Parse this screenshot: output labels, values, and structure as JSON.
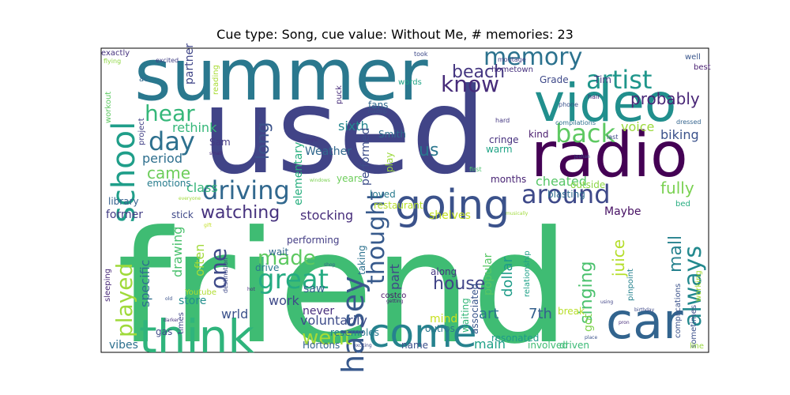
{
  "chart_data": {
    "type": "wordcloud",
    "title": "Cue type: Song, cue value: Without Me, # memories: 23",
    "words": [
      {
        "text": "friend",
        "color": "#3fbc73"
      },
      {
        "text": "used",
        "color": "#414487"
      },
      {
        "text": "summer",
        "color": "#2a788e"
      },
      {
        "text": "radio",
        "color": "#440154"
      },
      {
        "text": "video",
        "color": "#218f8d"
      },
      {
        "text": "car",
        "color": "#32648e"
      },
      {
        "text": "think",
        "color": "#2fb47c"
      },
      {
        "text": "come",
        "color": "#26828e"
      },
      {
        "text": "going",
        "color": "#3b528b"
      },
      {
        "text": "school",
        "color": "#1f9e89"
      },
      {
        "text": "driving",
        "color": "#31688e"
      },
      {
        "text": "halsey",
        "color": "#38598c"
      },
      {
        "text": "around",
        "color": "#3e4989"
      },
      {
        "text": "artist",
        "color": "#1f968b"
      },
      {
        "text": "back",
        "color": "#5ec962"
      },
      {
        "text": "great",
        "color": "#25ab82"
      },
      {
        "text": "day",
        "color": "#2d708e"
      },
      {
        "text": "memory",
        "color": "#2c728e"
      },
      {
        "text": "thought",
        "color": "#375a8c"
      },
      {
        "text": "know",
        "color": "#472c7a"
      },
      {
        "text": "hear",
        "color": "#35b779"
      },
      {
        "text": "always",
        "color": "#23898e"
      },
      {
        "text": "made",
        "color": "#5ec962"
      },
      {
        "text": "went",
        "color": "#a5db36"
      },
      {
        "text": "one",
        "color": "#3e4a89"
      },
      {
        "text": "played",
        "color": "#9fda3a"
      },
      {
        "text": "beach",
        "color": "#453781"
      },
      {
        "text": "singing",
        "color": "#4ac16d"
      },
      {
        "text": "watching",
        "color": "#46327e"
      },
      {
        "text": "long",
        "color": "#3b528b"
      },
      {
        "text": "mall",
        "color": "#26828e"
      },
      {
        "text": "house",
        "color": "#414487"
      },
      {
        "text": "us",
        "color": "#2a768e"
      },
      {
        "text": "came",
        "color": "#6ccd5a"
      },
      {
        "text": "fully",
        "color": "#7ad151"
      },
      {
        "text": "probably",
        "color": "#482576"
      },
      {
        "text": "juice",
        "color": "#b5de2b"
      },
      {
        "text": "voice",
        "color": "#9bd93c"
      },
      {
        "text": "biking",
        "color": "#3b528b"
      },
      {
        "text": "stocking",
        "color": "#472d7b"
      },
      {
        "text": "rethink",
        "color": "#35b779"
      },
      {
        "text": "period",
        "color": "#2e6f8e"
      },
      {
        "text": "class",
        "color": "#35b779"
      },
      {
        "text": "partner",
        "color": "#404688"
      },
      {
        "text": "cheated",
        "color": "#56c667"
      },
      {
        "text": "Maybe",
        "color": "#471164"
      },
      {
        "text": "shelves",
        "color": "#c2df23"
      },
      {
        "text": "sixth",
        "color": "#24868e"
      },
      {
        "text": "Weather",
        "color": "#31688e"
      },
      {
        "text": "elementary",
        "color": "#29af7f"
      },
      {
        "text": "performed",
        "color": "#3d4e8a"
      },
      {
        "text": "specific",
        "color": "#2d708e"
      },
      {
        "text": "drawing",
        "color": "#4ac16d"
      },
      {
        "text": "often",
        "color": "#a0da39"
      },
      {
        "text": "store",
        "color": "#218f8d"
      },
      {
        "text": "work",
        "color": "#3e4989"
      },
      {
        "text": "saw",
        "color": "#33638d"
      },
      {
        "text": "part",
        "color": "#3f4788"
      },
      {
        "text": "voluntarily",
        "color": "#3e4c8a"
      },
      {
        "text": "never",
        "color": "#472f7d"
      },
      {
        "text": "popular",
        "color": "#58c765"
      },
      {
        "text": "dollar",
        "color": "#1e9c89"
      },
      {
        "text": "art",
        "color": "#2b748e"
      },
      {
        "text": "7th",
        "color": "#34608d"
      },
      {
        "text": "main",
        "color": "#1fa188"
      },
      {
        "text": "mind",
        "color": "#c8e020"
      },
      {
        "text": "got",
        "color": "#7fd34e"
      },
      {
        "text": "wrld",
        "color": "#3b528b"
      },
      {
        "text": "vibes",
        "color": "#2d708e"
      },
      {
        "text": "former",
        "color": "#433e85"
      },
      {
        "text": "Grade",
        "color": "#3e4989"
      },
      {
        "text": "Tim",
        "color": "#453882"
      },
      {
        "text": "fans",
        "color": "#31688e"
      },
      {
        "text": "Sam",
        "color": "#443983"
      },
      {
        "text": "Smith",
        "color": "#2e6e8e"
      },
      {
        "text": "play",
        "color": "#9bd93c"
      },
      {
        "text": "cringe",
        "color": "#46307e"
      },
      {
        "text": "warm",
        "color": "#20a486"
      },
      {
        "text": "kind",
        "color": "#481b6d"
      },
      {
        "text": "years",
        "color": "#6ccd5a"
      },
      {
        "text": "months",
        "color": "#482374"
      },
      {
        "text": "loved",
        "color": "#297b8e"
      },
      {
        "text": "restaurant",
        "color": "#b5de2b"
      },
      {
        "text": "emotions",
        "color": "#287d8e"
      },
      {
        "text": "outside",
        "color": "#8bd646"
      },
      {
        "text": "blasting",
        "color": "#2f6c8e"
      },
      {
        "text": "library",
        "color": "#34618d"
      },
      {
        "text": "stick",
        "color": "#3f4889"
      },
      {
        "text": "performing",
        "color": "#433d84"
      },
      {
        "text": "wait",
        "color": "#31688e"
      },
      {
        "text": "drive",
        "color": "#2a788e"
      },
      {
        "text": "along",
        "color": "#453581"
      },
      {
        "text": "taking",
        "color": "#2c718e"
      },
      {
        "text": "outros",
        "color": "#2a768e"
      },
      {
        "text": "Hortons",
        "color": "#33638d"
      },
      {
        "text": "resembles",
        "color": "#2a788e"
      },
      {
        "text": "name",
        "color": "#3c508b"
      },
      {
        "text": "waiting",
        "color": "#34b679"
      },
      {
        "text": "resonated",
        "color": "#1f9a8a"
      },
      {
        "text": "involved",
        "color": "#3fbc73"
      },
      {
        "text": "driven",
        "color": "#3aba76"
      },
      {
        "text": "associated",
        "color": "#39558c"
      },
      {
        "text": "break",
        "color": "#b8de29"
      },
      {
        "text": "relationship",
        "color": "#1fa188"
      },
      {
        "text": "gas",
        "color": "#3e4a89"
      },
      {
        "text": "Youtube",
        "color": "#b0dd2f"
      },
      {
        "text": "sleeping",
        "color": "#482878"
      },
      {
        "text": "times",
        "color": "#3f4788"
      },
      {
        "text": "costco",
        "color": "#481769"
      },
      {
        "text": "pinpoint",
        "color": "#26828e"
      },
      {
        "text": "complications",
        "color": "#3b528b"
      },
      {
        "text": "sometimes",
        "color": "#3c4f8a"
      },
      {
        "text": "working",
        "color": "#a8db34"
      },
      {
        "text": "bed",
        "color": "#27ad81"
      },
      {
        "text": "line",
        "color": "#98d83e"
      },
      {
        "text": "exactly",
        "color": "#46327e"
      },
      {
        "text": "workout",
        "color": "#5ec962"
      },
      {
        "text": "reading",
        "color": "#a8db34"
      },
      {
        "text": "project",
        "color": "#424186"
      },
      {
        "text": "hometown",
        "color": "#46307e"
      },
      {
        "text": "words",
        "color": "#20a486"
      },
      {
        "text": "puck",
        "color": "#472c7a"
      },
      {
        "text": "well",
        "color": "#39568c"
      },
      {
        "text": "best",
        "color": "#481f70"
      },
      {
        "text": "ac",
        "color": "#31688e"
      },
      {
        "text": "montage",
        "color": "#424086"
      },
      {
        "text": "took",
        "color": "#3e4a89"
      },
      {
        "text": "excited",
        "color": "#424086"
      },
      {
        "text": "flying",
        "color": "#8fd744"
      },
      {
        "text": "phone",
        "color": "#3b528b"
      },
      {
        "text": "hair",
        "color": "#472a7a"
      },
      {
        "text": "hard",
        "color": "#453882"
      },
      {
        "text": "compilations",
        "color": "#2d708e"
      },
      {
        "text": "dressed",
        "color": "#33638d"
      },
      {
        "text": "last",
        "color": "#3e4989"
      },
      {
        "text": "Joshan",
        "color": "#3b528b"
      },
      {
        "text": "first",
        "color": "#4ac16d"
      },
      {
        "text": "roadtrip",
        "color": "#39568c"
      },
      {
        "text": "night",
        "color": "#453781"
      },
      {
        "text": "small",
        "color": "#472d7b"
      },
      {
        "text": "graduate",
        "color": "#404588"
      },
      {
        "text": "windows",
        "color": "#7ad151"
      },
      {
        "text": "everyone",
        "color": "#a0da39"
      },
      {
        "text": "gift",
        "color": "#c2df23"
      },
      {
        "text": "destination",
        "color": "#3e4989"
      },
      {
        "text": "shop",
        "color": "#33638d"
      },
      {
        "text": "hot",
        "color": "#472d7b"
      },
      {
        "text": "old",
        "color": "#3b528b"
      },
      {
        "text": "darker",
        "color": "#46327e"
      },
      {
        "text": "getting",
        "color": "#481f70"
      },
      {
        "text": "exciting",
        "color": "#3e4989"
      },
      {
        "text": "place",
        "color": "#3b528b"
      },
      {
        "text": "using",
        "color": "#414487"
      },
      {
        "text": "pron",
        "color": "#472d7b"
      },
      {
        "text": "birthday",
        "color": "#3e4989"
      },
      {
        "text": "musically",
        "color": "#9fda3a"
      }
    ]
  }
}
